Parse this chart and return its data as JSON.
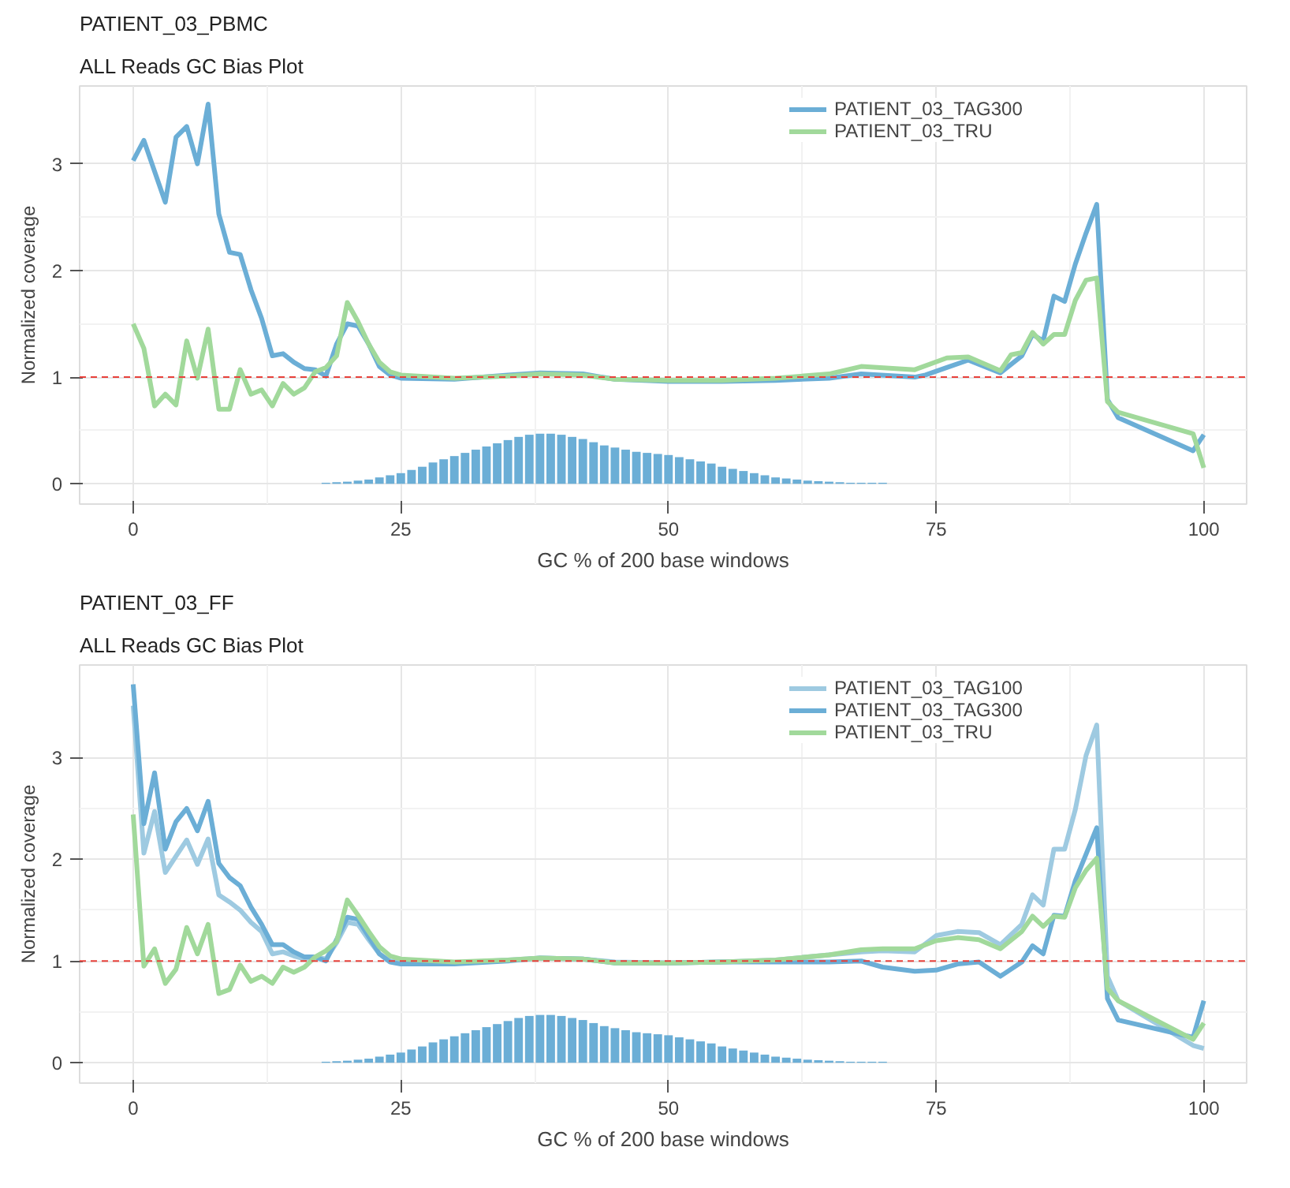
{
  "chart_data": [
    {
      "type": "line",
      "title": "PATIENT_03_PBMC",
      "subtitle": "ALL Reads GC Bias Plot",
      "xlabel": "GC % of 200 base windows",
      "ylabel": "Normalized coverage",
      "xlim": [
        -5,
        104
      ],
      "ylim": [
        -0.19,
        3.73
      ],
      "xticks": [
        0,
        25,
        50,
        75,
        100
      ],
      "yticks": [
        0,
        1,
        2,
        3
      ],
      "grid": true,
      "legend": "top right",
      "ref_lines": [
        {
          "axis": "y",
          "value": 1,
          "color": "#e8413b",
          "line_style": "dashed"
        }
      ],
      "series": [
        {
          "type": "bar",
          "color": "#6baed6",
          "x": [
            18,
            19,
            20,
            21,
            22,
            23,
            24,
            25,
            26,
            27,
            28,
            29,
            30,
            31,
            32,
            33,
            34,
            35,
            36,
            37,
            38,
            39,
            40,
            41,
            42,
            43,
            44,
            45,
            46,
            47,
            48,
            49,
            50,
            51,
            52,
            53,
            54,
            55,
            56,
            57,
            58,
            59,
            60,
            61,
            62,
            63,
            64,
            65,
            66,
            67,
            68,
            69,
            70
          ],
          "values": [
            0.01,
            0.015,
            0.02,
            0.03,
            0.04,
            0.06,
            0.08,
            0.1,
            0.13,
            0.16,
            0.2,
            0.23,
            0.26,
            0.29,
            0.32,
            0.35,
            0.38,
            0.41,
            0.44,
            0.46,
            0.47,
            0.47,
            0.46,
            0.44,
            0.42,
            0.39,
            0.36,
            0.34,
            0.32,
            0.3,
            0.29,
            0.28,
            0.27,
            0.25,
            0.23,
            0.21,
            0.19,
            0.16,
            0.14,
            0.12,
            0.1,
            0.08,
            0.06,
            0.05,
            0.04,
            0.03,
            0.025,
            0.02,
            0.015,
            0.01,
            0.01,
            0.01,
            0.01
          ]
        },
        {
          "name": "PATIENT_03_TAG300",
          "color": "#6baed6",
          "x": [
            0,
            1,
            2,
            3,
            4,
            5,
            6,
            7,
            8,
            9,
            10,
            11,
            12,
            13,
            14,
            15,
            16,
            17,
            18,
            19,
            20,
            21,
            22,
            23,
            24,
            25,
            30,
            35,
            38,
            42,
            45,
            50,
            55,
            60,
            65,
            68,
            73,
            74,
            76,
            78,
            81,
            83,
            84,
            85,
            86,
            87,
            88,
            89,
            90,
            91,
            92,
            99,
            100
          ],
          "values": [
            3.03,
            3.22,
            2.93,
            2.64,
            3.25,
            3.35,
            3.0,
            3.56,
            2.53,
            2.17,
            2.15,
            1.82,
            1.55,
            1.2,
            1.22,
            1.14,
            1.08,
            1.07,
            1.01,
            1.31,
            1.5,
            1.48,
            1.31,
            1.1,
            1.02,
            0.99,
            0.98,
            1.02,
            1.04,
            1.03,
            0.98,
            0.96,
            0.96,
            0.97,
            0.99,
            1.03,
            1.0,
            1.02,
            1.09,
            1.16,
            1.04,
            1.2,
            1.4,
            1.34,
            1.76,
            1.71,
            2.06,
            2.35,
            2.62,
            0.79,
            0.62,
            0.31,
            0.46
          ]
        },
        {
          "name": "PATIENT_03_TRU",
          "color": "#a1d99b",
          "x": [
            0,
            1,
            2,
            3,
            4,
            5,
            6,
            7,
            8,
            9,
            10,
            11,
            12,
            13,
            14,
            15,
            16,
            17,
            18,
            19,
            20,
            21,
            22,
            23,
            24,
            25,
            30,
            35,
            38,
            42,
            45,
            50,
            55,
            60,
            65,
            68,
            73,
            76,
            78,
            81,
            82,
            83,
            84,
            85,
            86,
            87,
            88,
            89,
            90,
            91,
            92,
            99,
            100
          ],
          "values": [
            1.5,
            1.27,
            0.73,
            0.84,
            0.74,
            1.34,
            0.99,
            1.45,
            0.7,
            0.7,
            1.07,
            0.84,
            0.88,
            0.73,
            0.94,
            0.84,
            0.9,
            1.05,
            1.09,
            1.2,
            1.7,
            1.52,
            1.31,
            1.14,
            1.05,
            1.02,
            0.99,
            1.01,
            1.03,
            1.02,
            0.98,
            0.97,
            0.97,
            0.99,
            1.03,
            1.1,
            1.07,
            1.18,
            1.19,
            1.06,
            1.21,
            1.23,
            1.42,
            1.31,
            1.4,
            1.4,
            1.72,
            1.91,
            1.93,
            0.77,
            0.67,
            0.47,
            0.15
          ]
        }
      ]
    },
    {
      "type": "line",
      "title": "PATIENT_03_FF",
      "subtitle": "ALL Reads GC Bias Plot",
      "xlabel": "GC % of 200 base windows",
      "ylabel": "Normalized coverage",
      "xlim": [
        -5,
        104
      ],
      "ylim": [
        -0.2,
        3.91
      ],
      "xticks": [
        0,
        25,
        50,
        75,
        100
      ],
      "yticks": [
        0,
        1,
        2,
        3
      ],
      "grid": true,
      "legend": "top right",
      "ref_lines": [
        {
          "axis": "y",
          "value": 1,
          "color": "#e8413b",
          "line_style": "dashed"
        }
      ],
      "series": [
        {
          "type": "bar",
          "color": "#6baed6",
          "x": [
            18,
            19,
            20,
            21,
            22,
            23,
            24,
            25,
            26,
            27,
            28,
            29,
            30,
            31,
            32,
            33,
            34,
            35,
            36,
            37,
            38,
            39,
            40,
            41,
            42,
            43,
            44,
            45,
            46,
            47,
            48,
            49,
            50,
            51,
            52,
            53,
            54,
            55,
            56,
            57,
            58,
            59,
            60,
            61,
            62,
            63,
            64,
            65,
            66,
            67,
            68,
            69,
            70
          ],
          "values": [
            0.01,
            0.015,
            0.02,
            0.03,
            0.04,
            0.06,
            0.08,
            0.1,
            0.13,
            0.16,
            0.2,
            0.23,
            0.26,
            0.29,
            0.32,
            0.35,
            0.38,
            0.41,
            0.44,
            0.46,
            0.47,
            0.47,
            0.46,
            0.44,
            0.42,
            0.39,
            0.36,
            0.34,
            0.32,
            0.3,
            0.29,
            0.28,
            0.27,
            0.25,
            0.23,
            0.21,
            0.19,
            0.16,
            0.14,
            0.12,
            0.1,
            0.08,
            0.06,
            0.05,
            0.04,
            0.03,
            0.025,
            0.02,
            0.015,
            0.01,
            0.01,
            0.01,
            0.01
          ]
        },
        {
          "name": "PATIENT_03_TAG100",
          "color": "#9ecae1",
          "x": [
            0,
            1,
            2,
            3,
            4,
            5,
            6,
            7,
            8,
            9,
            10,
            11,
            12,
            13,
            14,
            15,
            16,
            17,
            18,
            19,
            20,
            21,
            22,
            23,
            24,
            25,
            30,
            35,
            38,
            42,
            45,
            50,
            55,
            60,
            65,
            68,
            70,
            73,
            75,
            77,
            79,
            81,
            83,
            84,
            85,
            86,
            87,
            88,
            89,
            90,
            91,
            92,
            99,
            100
          ],
          "values": [
            3.51,
            2.06,
            2.47,
            1.87,
            2.03,
            2.19,
            1.95,
            2.2,
            1.65,
            1.58,
            1.5,
            1.38,
            1.29,
            1.07,
            1.09,
            1.05,
            1.02,
            1.04,
            1.02,
            1.18,
            1.38,
            1.36,
            1.21,
            1.07,
            1.0,
            0.99,
            0.98,
            1.01,
            1.03,
            1.02,
            0.99,
            0.98,
            0.99,
            1.01,
            1.06,
            1.09,
            1.1,
            1.09,
            1.25,
            1.29,
            1.28,
            1.16,
            1.36,
            1.65,
            1.55,
            2.1,
            2.1,
            2.49,
            3.02,
            3.32,
            0.85,
            0.61,
            0.17,
            0.14
          ]
        },
        {
          "name": "PATIENT_03_TAG300",
          "color": "#6baed6",
          "x": [
            0,
            1,
            2,
            3,
            4,
            5,
            6,
            7,
            8,
            9,
            10,
            11,
            12,
            13,
            14,
            15,
            16,
            17,
            18,
            19,
            20,
            21,
            22,
            23,
            24,
            25,
            30,
            35,
            38,
            42,
            45,
            50,
            55,
            60,
            65,
            68,
            70,
            73,
            75,
            77,
            79,
            81,
            83,
            84,
            85,
            86,
            87,
            88,
            89,
            90,
            91,
            92,
            99,
            100
          ],
          "values": [
            3.72,
            2.35,
            2.85,
            2.1,
            2.37,
            2.5,
            2.28,
            2.57,
            1.96,
            1.82,
            1.74,
            1.53,
            1.36,
            1.16,
            1.16,
            1.09,
            1.04,
            1.04,
            1.0,
            1.21,
            1.43,
            1.41,
            1.24,
            1.07,
            0.99,
            0.97,
            0.97,
            1.0,
            1.03,
            1.02,
            0.98,
            0.98,
            0.99,
            0.99,
            0.99,
            1.0,
            0.94,
            0.9,
            0.91,
            0.97,
            0.99,
            0.85,
            0.99,
            1.15,
            1.07,
            1.45,
            1.44,
            1.79,
            2.05,
            2.31,
            0.63,
            0.42,
            0.25,
            0.61
          ]
        },
        {
          "name": "PATIENT_03_TRU",
          "color": "#a1d99b",
          "x": [
            0,
            1,
            2,
            3,
            4,
            5,
            6,
            7,
            8,
            9,
            10,
            11,
            12,
            13,
            14,
            15,
            16,
            17,
            18,
            19,
            20,
            21,
            22,
            23,
            24,
            25,
            30,
            35,
            38,
            42,
            45,
            50,
            55,
            60,
            65,
            68,
            70,
            73,
            75,
            77,
            79,
            81,
            83,
            84,
            85,
            86,
            87,
            88,
            89,
            90,
            91,
            92,
            99,
            100
          ],
          "values": [
            2.44,
            0.95,
            1.12,
            0.78,
            0.92,
            1.33,
            1.07,
            1.36,
            0.68,
            0.72,
            0.96,
            0.8,
            0.85,
            0.78,
            0.94,
            0.89,
            0.94,
            1.04,
            1.1,
            1.19,
            1.6,
            1.45,
            1.29,
            1.14,
            1.05,
            1.02,
            0.99,
            1.01,
            1.03,
            1.02,
            0.98,
            0.98,
            0.99,
            1.01,
            1.06,
            1.11,
            1.12,
            1.12,
            1.2,
            1.23,
            1.21,
            1.12,
            1.29,
            1.44,
            1.34,
            1.44,
            1.43,
            1.72,
            1.89,
            2.01,
            0.73,
            0.61,
            0.23,
            0.39
          ]
        }
      ]
    }
  ]
}
